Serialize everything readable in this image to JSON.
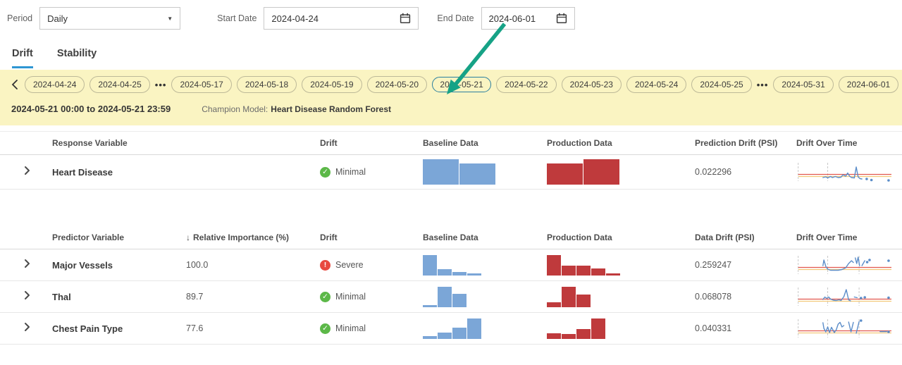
{
  "toolbar": {
    "period_label": "Period",
    "period_value": "Daily",
    "start_date_label": "Start Date",
    "start_date_value": "2024-04-24",
    "end_date_label": "End Date",
    "end_date_value": "2024-06-01"
  },
  "tabs": {
    "drift": "Drift",
    "stability": "Stability"
  },
  "date_strip": {
    "ellipsis": "•••",
    "items": [
      {
        "label": "2024-04-24"
      },
      {
        "label": "2024-04-25"
      },
      {
        "ellipsis": true
      },
      {
        "label": "2024-05-17"
      },
      {
        "label": "2024-05-18"
      },
      {
        "label": "2024-05-19"
      },
      {
        "label": "2024-05-20"
      },
      {
        "label": "2024-05-21",
        "selected": true
      },
      {
        "label": "2024-05-22"
      },
      {
        "label": "2024-05-23"
      },
      {
        "label": "2024-05-24"
      },
      {
        "label": "2024-05-25"
      },
      {
        "ellipsis": true
      },
      {
        "label": "2024-05-31"
      },
      {
        "label": "2024-06-01"
      }
    ],
    "range_text": "2024-05-21 00:00 to 2024-05-21 23:59",
    "champion_label": "Champion Model:",
    "champion_name": "Heart Disease Random Forest"
  },
  "icons": {
    "minimal": "✓",
    "severe": "!"
  },
  "response_table": {
    "headers": {
      "name": "Response Variable",
      "drift": "Drift",
      "baseline": "Baseline Data",
      "production": "Production Data",
      "psi": "Prediction Drift (PSI)",
      "time": "Drift Over Time"
    },
    "rows": [
      {
        "name": "Heart Disease",
        "status": "Minimal",
        "level": "minimal",
        "baseline": [
          100,
          84
        ],
        "production": [
          84,
          100
        ],
        "psi": "0.022296",
        "spark": {
          "verticals": [
            2,
            33
          ],
          "red_y": 18.5,
          "yellow_y": 21.5,
          "segments": [
            [
              [
                28,
                23
              ],
              [
                31,
                22
              ],
              [
                33,
                23.5
              ],
              [
                36,
                21.5
              ],
              [
                38,
                23
              ],
              [
                41,
                21.5
              ],
              [
                44,
                23
              ],
              [
                47,
                22.5
              ],
              [
                49,
                19
              ],
              [
                52,
                21
              ],
              [
                54,
                16.5
              ],
              [
                56,
                21
              ],
              [
                58,
                23
              ],
              [
                61,
                23.5
              ],
              [
                63,
                8
              ],
              [
                65,
                22
              ],
              [
                67,
                24.5
              ],
              [
                69,
                25
              ]
            ]
          ],
          "dots": [
            [
              74,
              25
            ],
            [
              79,
              26.5
            ],
            [
              97,
              27
            ]
          ]
        }
      }
    ]
  },
  "predictor_table": {
    "sort_indicator": "↓",
    "headers": {
      "name": "Predictor Variable",
      "importance": "Relative Importance (%)",
      "drift": "Drift",
      "baseline": "Baseline Data",
      "production": "Production Data",
      "psi": "Data Drift (PSI)",
      "time": "Drift Over Time"
    },
    "rows": [
      {
        "name": "Major Vessels",
        "importance": "100.0",
        "status": "Severe",
        "level": "severe",
        "baseline": [
          100,
          29,
          17,
          8
        ],
        "production": [
          100,
          46,
          46,
          32,
          8
        ],
        "psi": "0.259247",
        "spark": {
          "verticals": [
            2,
            33,
            66
          ],
          "red_y": 18.5,
          "yellow_y": 21.5,
          "segments": [
            [
              [
                28,
                16
              ],
              [
                29,
                8
              ],
              [
                31,
                17
              ],
              [
                33,
                21
              ],
              [
                36,
                22.5
              ],
              [
                40,
                22.5
              ],
              [
                44,
                22.5
              ],
              [
                48,
                21.5
              ],
              [
                52,
                19
              ],
              [
                55,
                13
              ],
              [
                58,
                9
              ],
              [
                60,
                11.5
              ]
            ],
            [
              [
                62,
                5
              ],
              [
                63.5,
                13
              ],
              [
                65,
                4
              ],
              [
                66.5,
                16
              ]
            ],
            [
              [
                69,
                16
              ],
              [
                72,
                9
              ]
            ]
          ],
          "dots": [
            [
              74.5,
              11
            ],
            [
              77,
              8
            ],
            [
              97,
              9
            ]
          ]
        }
      },
      {
        "name": "Thal",
        "importance": "89.7",
        "status": "Minimal",
        "level": "minimal",
        "baseline": [
          8,
          100,
          64
        ],
        "production": [
          23,
          100,
          60
        ],
        "psi": "0.068078",
        "spark": {
          "verticals": [
            2,
            33,
            66
          ],
          "red_y": 18.5,
          "yellow_y": 21.5,
          "segments": [
            [
              [
                28,
                19
              ],
              [
                30,
                15.5
              ],
              [
                32,
                17.5
              ],
              [
                34,
                15.5
              ],
              [
                36,
                18.5
              ],
              [
                39,
                20
              ],
              [
                42,
                20.5
              ],
              [
                45,
                19.5
              ],
              [
                47,
                20.5
              ],
              [
                50,
                15
              ],
              [
                52.5,
                5
              ],
              [
                55,
                19.5
              ],
              [
                57,
                21
              ]
            ],
            [
              [
                61,
                15.5
              ],
              [
                64,
                16.5
              ]
            ]
          ],
          "dots": [
            [
              68,
              17
            ],
            [
              72,
              16
            ],
            [
              97,
              16.5
            ]
          ]
        }
      },
      {
        "name": "Chest Pain Type",
        "importance": "77.6",
        "status": "Minimal",
        "level": "minimal",
        "baseline": [
          13,
          29,
          52,
          100
        ],
        "production": [
          25,
          22,
          48,
          100
        ],
        "psi": "0.040331",
        "spark": {
          "verticals": [
            2,
            33,
            66
          ],
          "red_y": 18.5,
          "yellow_y": 21.5,
          "segments": [
            [
              [
                28,
                7
              ],
              [
                29,
                15
              ],
              [
                31,
                20
              ],
              [
                33,
                13
              ],
              [
                35,
                21
              ],
              [
                37,
                13.5
              ],
              [
                40,
                21
              ],
              [
                42,
                17
              ],
              [
                44,
                9
              ],
              [
                46,
                6.5
              ],
              [
                48,
                13
              ],
              [
                50,
                11
              ]
            ],
            [
              [
                55,
                6
              ],
              [
                57.5,
                20
              ],
              [
                60,
                6.5
              ]
            ],
            [
              [
                63,
                22
              ],
              [
                66,
                5.5
              ]
            ],
            [
              [
                88,
                19.5
              ],
              [
                95,
                19.5
              ]
            ]
          ],
          "dots": [
            [
              68,
              4
            ],
            [
              97,
              20
            ]
          ]
        }
      }
    ]
  },
  "colors": {
    "accent": "#2e96d3",
    "band_bg": "#faf4c2",
    "pill_border": "#bdb998",
    "selected_pill_border": "#2a7f9f",
    "arrow": "#16a286",
    "baseline_bar": "#7ba6d7",
    "production_bar": "#bf3a3c",
    "minimal": "#5cb848",
    "severe": "#e8493f",
    "spark_line": "#5b8dc9",
    "spark_threshold_red": "#e2574e",
    "spark_threshold_yellow": "#f3c879",
    "spark_grid": "#c8c8c8"
  }
}
